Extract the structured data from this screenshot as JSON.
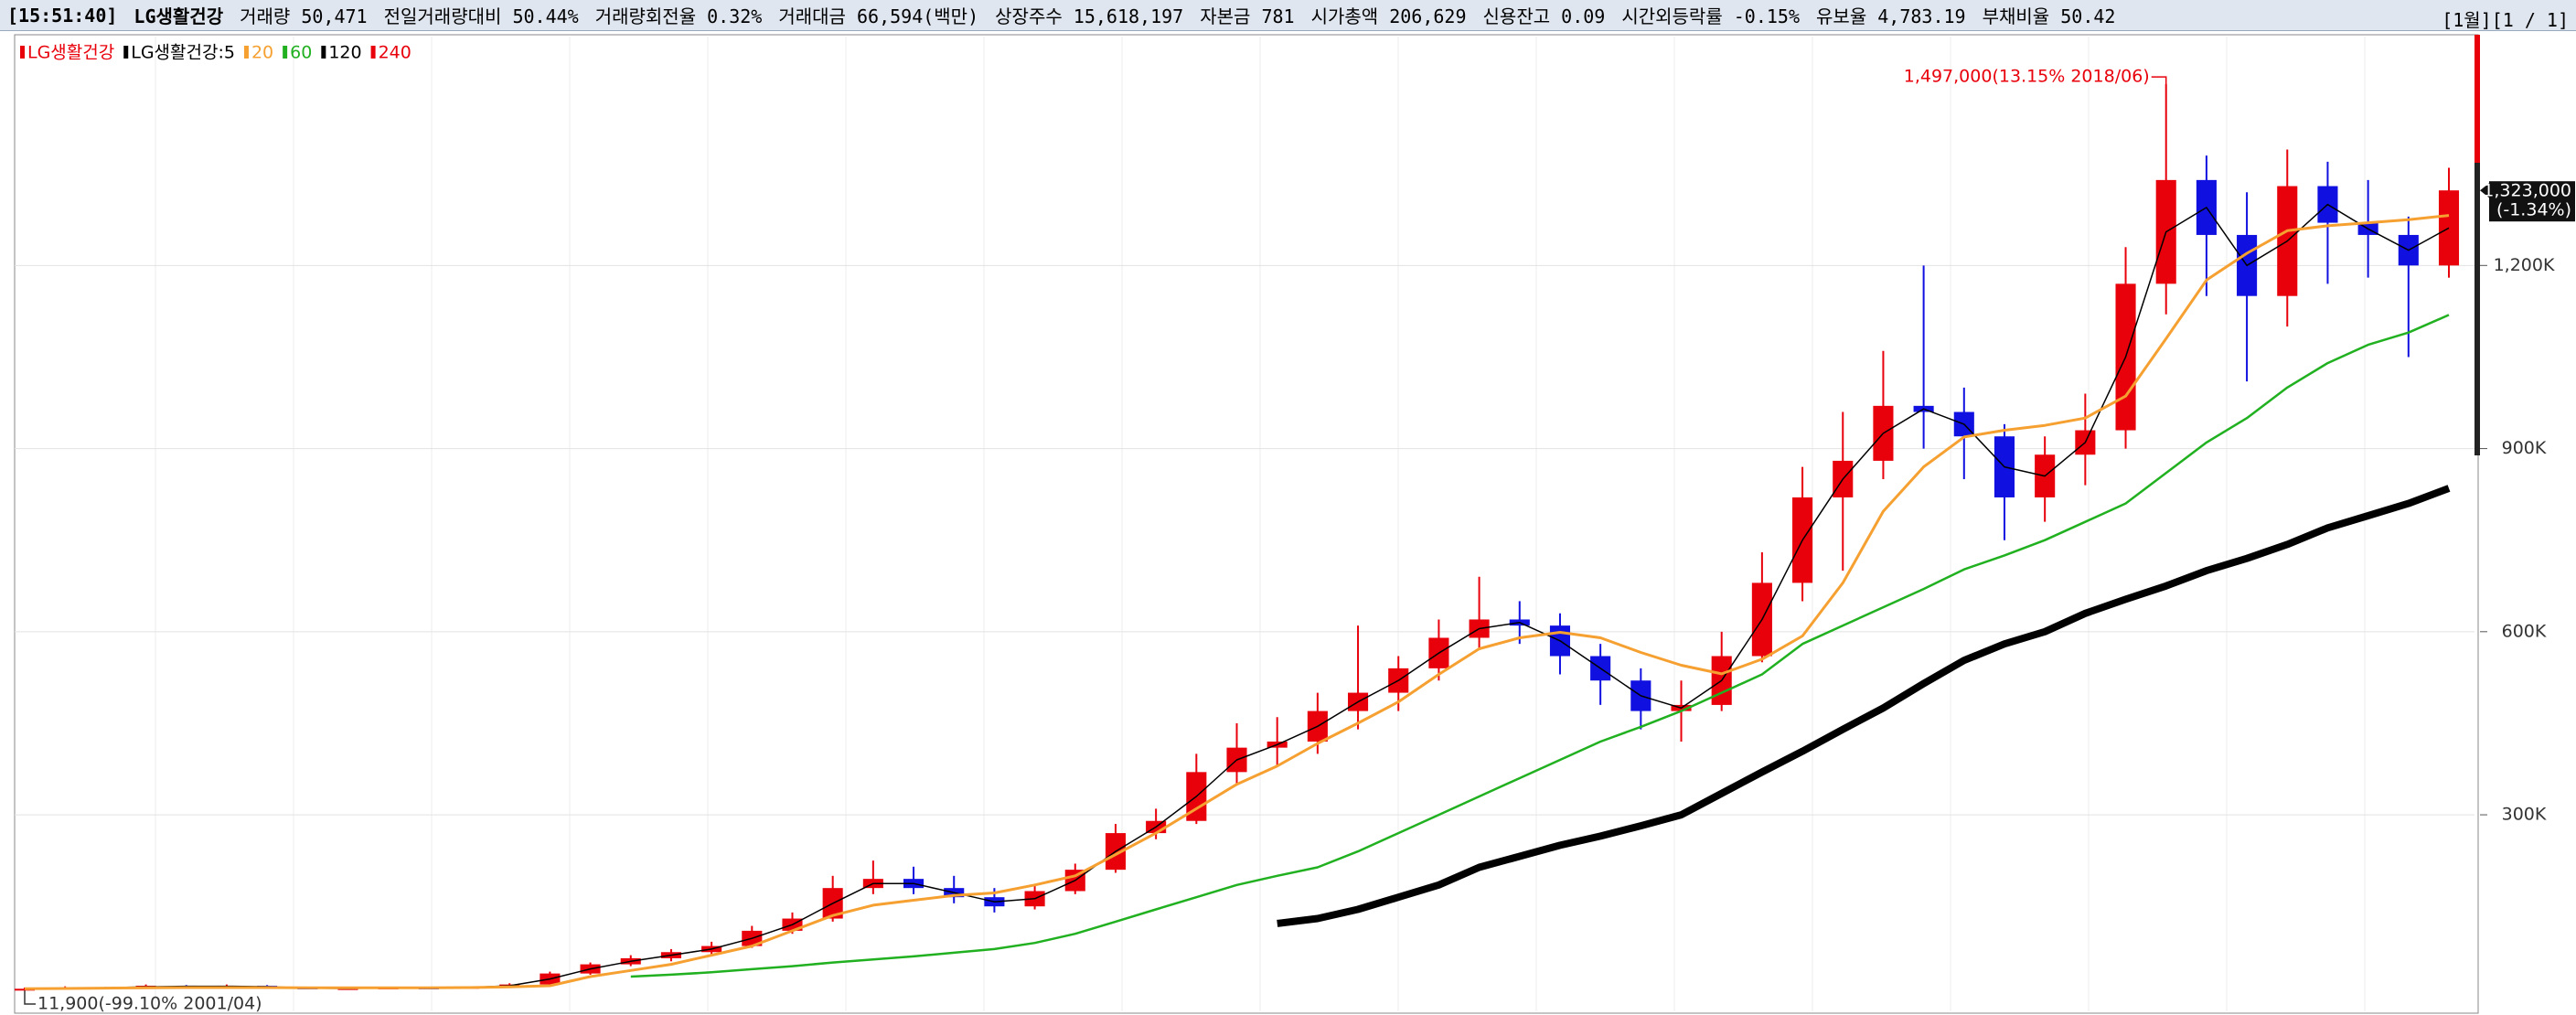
{
  "header": {
    "items": [
      "[15:51:40]",
      "LG생활건강",
      "거래량 50,471",
      "전일거래량대비 50.44%",
      "거래량회전율 0.32%",
      "거래대금 66,594(백만)",
      "상장주수 15,618,197",
      "자본금 781",
      "시가총액 206,629",
      "신용잔고 0.09",
      "시간외등락률 -0.15%",
      "유보율 4,783.19",
      "부채비율 50.42"
    ],
    "right": "[1월][1 / 1]"
  },
  "chart_data": {
    "type": "candlestick",
    "name": "LG생활건강",
    "up_color": "#e8000b",
    "down_color": "#1010e0",
    "candles": [
      [
        13000,
        17000,
        11900,
        15000
      ],
      [
        15000,
        19000,
        14000,
        17000
      ],
      [
        17000,
        18000,
        15000,
        16000
      ],
      [
        16000,
        22000,
        15000,
        20000
      ],
      [
        20000,
        21000,
        17000,
        18000
      ],
      [
        18000,
        22000,
        17000,
        20000
      ],
      [
        20000,
        21000,
        16000,
        17000
      ],
      [
        17000,
        18000,
        14000,
        15000
      ],
      [
        15000,
        17000,
        14000,
        16000
      ],
      [
        16000,
        18000,
        15000,
        17000
      ],
      [
        17000,
        18000,
        15000,
        16000
      ],
      [
        16000,
        19000,
        15000,
        18000
      ],
      [
        18000,
        24000,
        17000,
        22000
      ],
      [
        22000,
        43000,
        21000,
        40000
      ],
      [
        40000,
        58000,
        38000,
        55000
      ],
      [
        55000,
        70000,
        52000,
        65000
      ],
      [
        65000,
        80000,
        60000,
        75000
      ],
      [
        75000,
        92000,
        70000,
        85000
      ],
      [
        85000,
        118000,
        82000,
        110000
      ],
      [
        110000,
        140000,
        105000,
        130000
      ],
      [
        130000,
        200000,
        125000,
        180000
      ],
      [
        180000,
        225000,
        170000,
        195000
      ],
      [
        195000,
        215000,
        170000,
        180000
      ],
      [
        180000,
        200000,
        155000,
        165000
      ],
      [
        165000,
        180000,
        140000,
        150000
      ],
      [
        150000,
        185000,
        145000,
        175000
      ],
      [
        175000,
        220000,
        170000,
        210000
      ],
      [
        210000,
        285000,
        205000,
        270000
      ],
      [
        270000,
        310000,
        260000,
        290000
      ],
      [
        290000,
        400000,
        285000,
        370000
      ],
      [
        370000,
        450000,
        350000,
        410000
      ],
      [
        410000,
        460000,
        380000,
        420000
      ],
      [
        420000,
        500000,
        400000,
        470000
      ],
      [
        470000,
        610000,
        440000,
        500000
      ],
      [
        500000,
        560000,
        470000,
        540000
      ],
      [
        540000,
        620000,
        520000,
        590000
      ],
      [
        590000,
        690000,
        570000,
        620000
      ],
      [
        620000,
        650000,
        580000,
        610000
      ],
      [
        610000,
        630000,
        530000,
        560000
      ],
      [
        560000,
        580000,
        480000,
        520000
      ],
      [
        520000,
        540000,
        440000,
        470000
      ],
      [
        470000,
        520000,
        420000,
        480000
      ],
      [
        480000,
        600000,
        470000,
        560000
      ],
      [
        560000,
        730000,
        550000,
        680000
      ],
      [
        680000,
        870000,
        650000,
        820000
      ],
      [
        820000,
        960000,
        700000,
        880000
      ],
      [
        880000,
        1060000,
        850000,
        970000
      ],
      [
        970000,
        1200000,
        900000,
        960000
      ],
      [
        960000,
        1000000,
        850000,
        920000
      ],
      [
        920000,
        940000,
        750000,
        820000
      ],
      [
        820000,
        920000,
        780000,
        890000
      ],
      [
        890000,
        990000,
        840000,
        930000
      ],
      [
        930000,
        1230000,
        900000,
        1170000
      ],
      [
        1170000,
        1497000,
        1120000,
        1340000
      ],
      [
        1340000,
        1380000,
        1150000,
        1250000
      ],
      [
        1250000,
        1320000,
        1010000,
        1150000
      ],
      [
        1150000,
        1390000,
        1100000,
        1330000
      ],
      [
        1330000,
        1370000,
        1170000,
        1270000
      ],
      [
        1270000,
        1340000,
        1180000,
        1250000
      ],
      [
        1250000,
        1280000,
        1050000,
        1200000
      ],
      [
        1200000,
        1360000,
        1180000,
        1323000
      ]
    ],
    "series": [
      {
        "name": "LG생활건강:5",
        "color": "#000000",
        "values": [
          15000,
          16000,
          16500,
          18000,
          19000,
          19000,
          18500,
          16000,
          15500,
          16500,
          16500,
          17000,
          20000,
          31000,
          47500,
          60000,
          70000,
          80000,
          97500,
          120000,
          155000,
          187500,
          187500,
          172500,
          157500,
          162500,
          192500,
          240000,
          280000,
          330000,
          390000,
          415000,
          445000,
          485000,
          520000,
          565000,
          605000,
          615000,
          585000,
          540000,
          495000,
          475000,
          520000,
          620000,
          750000,
          850000,
          925000,
          965000,
          940000,
          870000,
          855000,
          910000,
          1050000,
          1255000,
          1295000,
          1200000,
          1240000,
          1300000,
          1260000,
          1225000,
          1261500
        ]
      },
      {
        "name": "20",
        "color": "#f5a030",
        "values": [
          15000,
          15500,
          16000,
          16500,
          17000,
          17000,
          17000,
          16500,
          16500,
          16500,
          16500,
          17000,
          18000,
          20000,
          35000,
          45000,
          55000,
          70000,
          85000,
          110000,
          135000,
          152000,
          160000,
          168000,
          172000,
          185000,
          200000,
          235000,
          270000,
          310000,
          350000,
          380000,
          417000,
          450000,
          485000,
          530000,
          572000,
          590000,
          599000,
          590000,
          566000,
          545000,
          531000,
          555000,
          593000,
          680000,
          797000,
          870000,
          919000,
          930000,
          938000,
          950000,
          986000,
          1080000,
          1176000,
          1220000,
          1257000,
          1265000,
          1270000,
          1275000,
          1282000
        ]
      },
      {
        "name": "60",
        "color": "#20b020",
        "values": [
          null,
          null,
          null,
          null,
          null,
          null,
          null,
          null,
          null,
          null,
          null,
          null,
          null,
          null,
          null,
          35000,
          38000,
          42000,
          47000,
          52000,
          58000,
          63000,
          68000,
          74000,
          80000,
          90000,
          105000,
          125000,
          145000,
          165000,
          185000,
          200000,
          214000,
          240000,
          270000,
          300000,
          330000,
          360000,
          390000,
          420000,
          444000,
          470000,
          500000,
          530000,
          580000,
          610000,
          640000,
          670000,
          702000,
          725000,
          750000,
          780000,
          810000,
          860000,
          910000,
          950000,
          1000000,
          1040000,
          1070000,
          1090000,
          1119000
        ]
      },
      {
        "name": "120",
        "color": "#000000",
        "values": [
          null,
          null,
          null,
          null,
          null,
          null,
          null,
          null,
          null,
          null,
          null,
          null,
          null,
          null,
          null,
          null,
          null,
          null,
          null,
          null,
          null,
          null,
          null,
          null,
          null,
          null,
          null,
          null,
          null,
          null,
          null,
          122000,
          130000,
          145000,
          165000,
          185000,
          214000,
          232000,
          250000,
          265000,
          282000,
          300000,
          335000,
          370000,
          404000,
          440000,
          475000,
          515000,
          553000,
          580000,
          600000,
          630000,
          653000,
          675000,
          700000,
          720000,
          743000,
          770000,
          790000,
          810000,
          835000
        ]
      }
    ],
    "extra_legend": {
      "name": "240",
      "color": "#e8000b"
    },
    "ylim": [
      -22000,
      1575000
    ],
    "yticks": [
      {
        "value": 300000,
        "label": "300K"
      },
      {
        "value": 600000,
        "label": "600K"
      },
      {
        "value": 900000,
        "label": "900K"
      },
      {
        "value": 1200000,
        "label": "1,200K"
      }
    ],
    "grid": true,
    "high_annotation": "1,497,000(13.15% 2018/06)",
    "low_annotation": "11,900(-99.10% 2001/04)",
    "current": {
      "value": 1323000,
      "label": "1,323,000",
      "change": "(-1.34%)"
    }
  }
}
